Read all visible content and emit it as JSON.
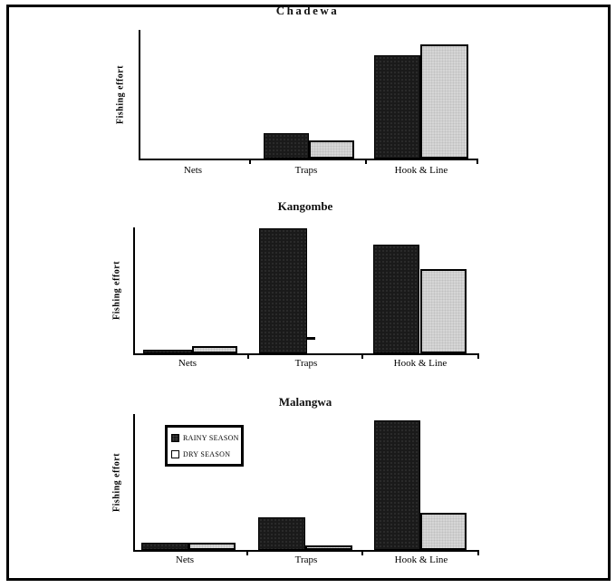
{
  "figure_title": "",
  "colors": {
    "rainy_season": "#1a1a1a",
    "dry_season": "#d6d6d6",
    "axis": "#000000",
    "frame": "#000000",
    "background": "#ffffff"
  },
  "legend": {
    "entries": [
      {
        "label": "RAINY SEASON",
        "swatch": "dark"
      },
      {
        "label": "DRY SEASON",
        "swatch": "light"
      }
    ],
    "position": "upper-left of Malangwa chart"
  },
  "chart_data": [
    {
      "type": "bar",
      "title": "Chadewa",
      "ylabel": "Fishing effort",
      "xlabel": "",
      "categories": [
        "Nets",
        "Traps",
        "Hook & Line"
      ],
      "series": [
        {
          "name": "RAINY SEASON",
          "values": [
            0,
            0.2,
            0.8
          ]
        },
        {
          "name": "DRY SEASON",
          "values": [
            0,
            0.14,
            0.89
          ]
        }
      ],
      "ylim": [
        0,
        1
      ],
      "y_units": "relative height (y-axis has no tick labels)",
      "grid": false,
      "legend_shown": false
    },
    {
      "type": "bar",
      "title": "Kangombe",
      "ylabel": "Fishing effort",
      "xlabel": "",
      "categories": [
        "Nets",
        "Traps",
        "Hook & Line"
      ],
      "series": [
        {
          "name": "RAINY SEASON",
          "values": [
            0.03,
            0.99,
            0.86
          ]
        },
        {
          "name": "DRY SEASON",
          "values": [
            0.06,
            0.13,
            0.67
          ]
        }
      ],
      "ylim": [
        0,
        1
      ],
      "y_units": "relative height (y-axis has no tick labels)",
      "grid": false,
      "legend_shown": false,
      "annotations": [
        "Dry-season Traps bar appears only as a short dash beside the rainy-season bar"
      ]
    },
    {
      "type": "bar",
      "title": "Malangwa",
      "ylabel": "Fishing effort",
      "xlabel": "",
      "categories": [
        "Nets",
        "Traps",
        "Hook & Line"
      ],
      "series": [
        {
          "name": "RAINY SEASON",
          "values": [
            0.05,
            0.24,
            0.95
          ]
        },
        {
          "name": "DRY SEASON",
          "values": [
            0.05,
            0.03,
            0.27
          ]
        }
      ],
      "ylim": [
        0,
        1
      ],
      "y_units": "relative height (y-axis has no tick labels)",
      "grid": false,
      "legend_shown": true,
      "legend_position": "upper-left"
    }
  ]
}
